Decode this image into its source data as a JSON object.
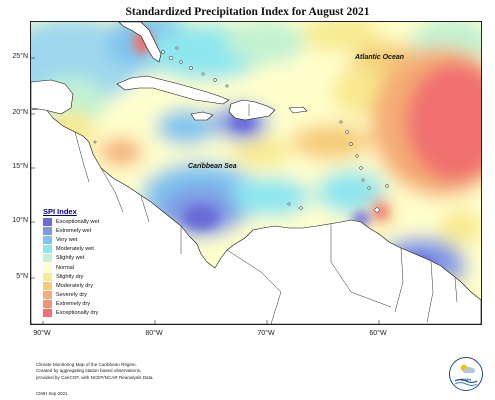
{
  "title": "Standardized Precipitation Index for August 2021",
  "map": {
    "latitude_labels": [
      "25°N",
      "20°N",
      "15°N",
      "10°N",
      "5°N"
    ],
    "longitude_labels": [
      "90°W",
      "80°W",
      "70°W",
      "60°W"
    ],
    "place_labels": {
      "atlantic": "Atlantic Ocean",
      "caribbean": "Caribbean Sea"
    }
  },
  "legend": {
    "title": "SPI Index",
    "items": [
      {
        "label": "Exceptionally wet",
        "color": "#6a6ad6"
      },
      {
        "label": "Extremely wet",
        "color": "#7f97e4"
      },
      {
        "label": "Very wet",
        "color": "#7fc4ee"
      },
      {
        "label": "Moderately wet",
        "color": "#8ee6ee"
      },
      {
        "label": "Slightly wet",
        "color": "#c2f2d2"
      },
      {
        "label": "Normal",
        "color": "#ffffcc"
      },
      {
        "label": "Slightly dry",
        "color": "#f8ea90"
      },
      {
        "label": "Moderately dry",
        "color": "#f6cc78"
      },
      {
        "label": "Severely dry",
        "color": "#f4ad74"
      },
      {
        "label": "Extremely dry",
        "color": "#f39276"
      },
      {
        "label": "Exceptionally dry",
        "color": "#f07070"
      }
    ]
  },
  "footnote": {
    "line1": "Climate Monitoring Map of the Caribbean Region.",
    "line2": "Created by aggregating station based observations,",
    "line3": "provided by CariCOF, with NCEP/NCAR Reanalysis Data."
  },
  "credit": "CIMH Sep-2021",
  "logo": {
    "text": "CIMH"
  }
}
